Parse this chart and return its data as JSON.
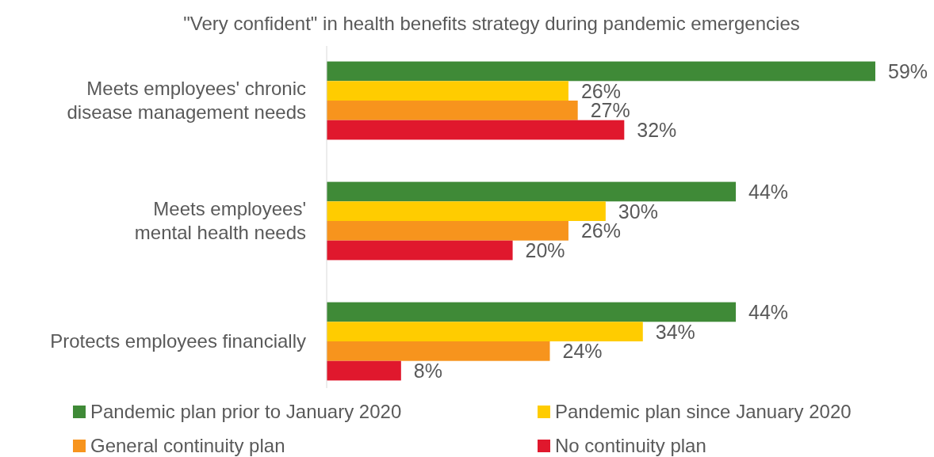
{
  "chart_data": {
    "type": "bar",
    "orientation": "horizontal",
    "title": "\"Very confident\" in health benefits strategy during pandemic emergencies",
    "categories": [
      "Meets employees' chronic disease management needs",
      "Meets employees' mental health needs",
      "Protects employees financially"
    ],
    "series": [
      {
        "name": "Pandemic plan prior to January 2020",
        "color": "#3f8a37",
        "values": [
          59,
          44,
          44
        ],
        "value_labels": [
          "59%",
          "44%",
          "44%"
        ]
      },
      {
        "name": "Pandemic plan since January 2020",
        "color": "#ffcc00",
        "values": [
          26,
          30,
          34
        ],
        "value_labels": [
          "26%",
          "30%",
          "34%"
        ]
      },
      {
        "name": "General continuity plan",
        "color": "#f7941d",
        "values": [
          27,
          26,
          24
        ],
        "value_labels": [
          "27%",
          "26%",
          "24%"
        ]
      },
      {
        "name": "No continuity plan",
        "color": "#e0182d",
        "values": [
          32,
          20,
          8
        ],
        "value_labels": [
          "32%",
          "20%",
          "8%"
        ]
      }
    ],
    "legend": "bottom"
  }
}
